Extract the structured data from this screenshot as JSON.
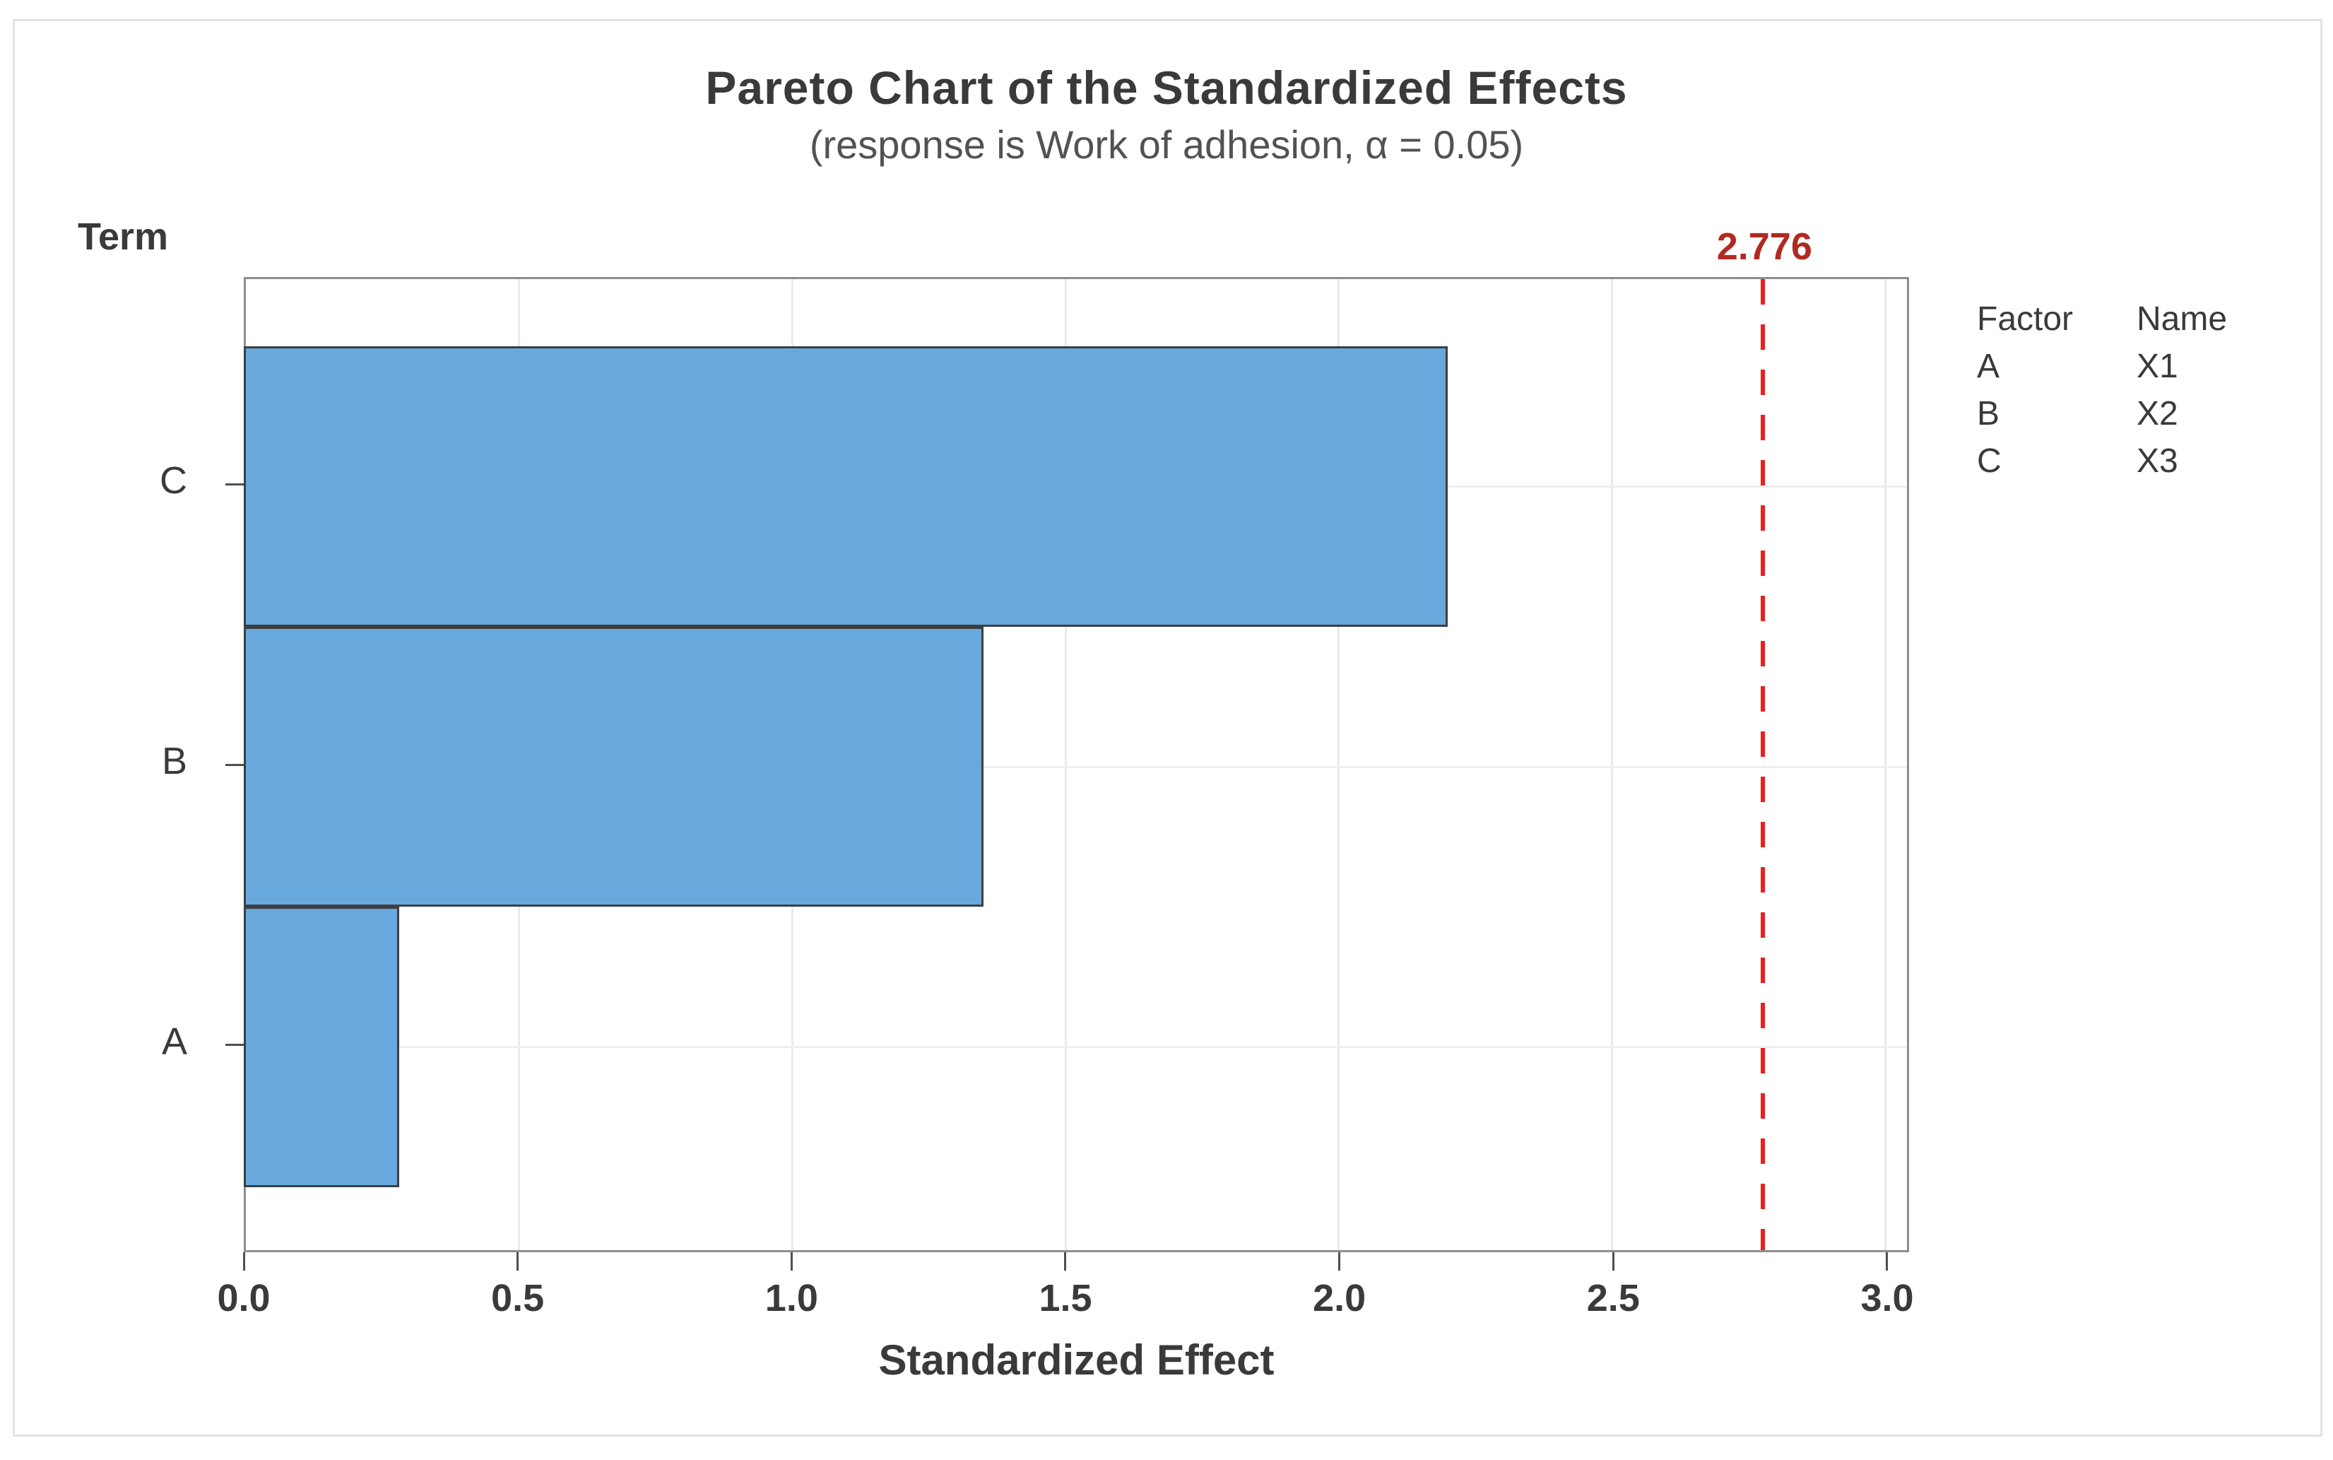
{
  "title": "Pareto Chart of the Standardized Effects",
  "subtitle": "(response is Work of adhesion, α = 0.05)",
  "y_axis_title": "Term",
  "x_axis_title": "Standardized Effect",
  "alpha": "0.05",
  "reference_line": {
    "value": 2.776,
    "label": "2.776"
  },
  "legend": {
    "headers": [
      "Factor",
      "Name"
    ],
    "rows": [
      [
        "A",
        "X1"
      ],
      [
        "B",
        "X2"
      ],
      [
        "C",
        "X3"
      ]
    ]
  },
  "chart_data": {
    "type": "bar",
    "orientation": "horizontal",
    "title": "Pareto Chart of the Standardized Effects",
    "subtitle": "(response is Work of adhesion, α = 0.05)",
    "xlabel": "Standardized Effect",
    "ylabel": "Term",
    "categories": [
      "C",
      "B",
      "A"
    ],
    "values": [
      2.2,
      1.35,
      0.28
    ],
    "xlim": [
      0,
      3.04
    ],
    "x_ticks": [
      0.0,
      0.5,
      1.0,
      1.5,
      2.0,
      2.5,
      3.0
    ],
    "x_tick_labels": [
      "0.0",
      "0.5",
      "1.0",
      "1.5",
      "2.0",
      "2.5",
      "3.0"
    ],
    "reference_value": 2.776,
    "reference_label": "2.776",
    "grid": "on",
    "legend_position": "right"
  },
  "colors": {
    "bar_fill": "#67a9dc",
    "bar_border": "#3e3e40",
    "reference_line": "#ee1e1e",
    "reference_label": "#b02a22",
    "plot_border": "#8e8e8e",
    "gridline": "#eaeaea",
    "tick": "#4f4f4f",
    "text": "#3a3a3a",
    "frame_border": "#e3e3e3"
  }
}
